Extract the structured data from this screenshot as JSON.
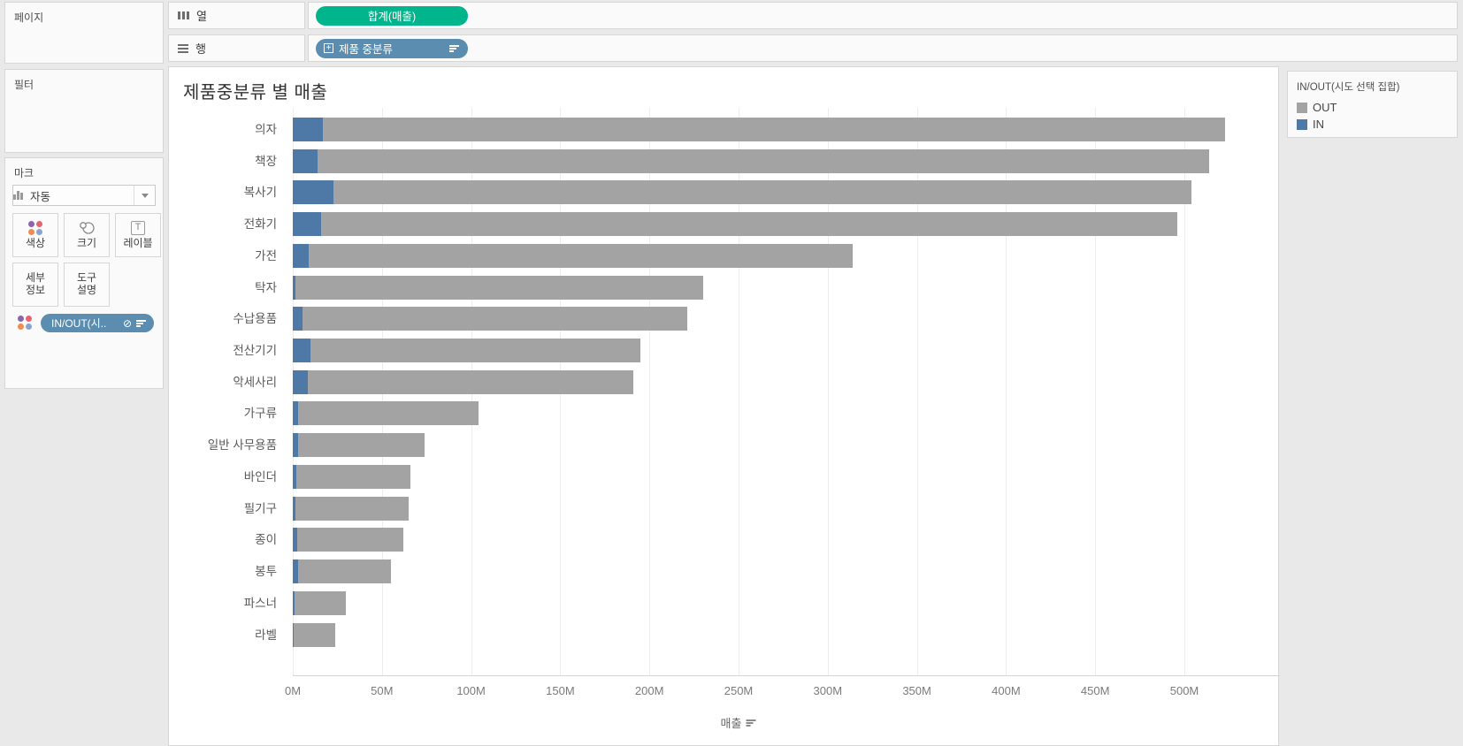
{
  "pages_panel": {
    "title": "페이지"
  },
  "filters_panel": {
    "title": "필터"
  },
  "marks_panel": {
    "title": "마크",
    "mark_type_label": "자동",
    "color_button": "색상",
    "size_button": "크기",
    "label_button": "레이블",
    "detail_button_line1": "세부",
    "detail_button_line2": "정보",
    "tooltip_button_line1": "도구",
    "tooltip_button_line2": "설명",
    "set_pill_label": "IN/OUT(시.."
  },
  "shelves": {
    "columns_label": "열",
    "columns_pill": "합계(매출)",
    "rows_label": "행",
    "rows_pill": "제품 중분류"
  },
  "chart": {
    "title": "제품중분류 별 매출"
  },
  "chart_data": {
    "type": "bar",
    "orientation": "horizontal",
    "stacked": true,
    "title": "제품중분류 별 매출",
    "categories": [
      "의자",
      "책장",
      "복사기",
      "전화기",
      "가전",
      "탁자",
      "수납용품",
      "전산기기",
      "악세사리",
      "가구류",
      "일반 사무용품",
      "바인더",
      "필기구",
      "종이",
      "봉투",
      "파스너",
      "라벨"
    ],
    "series": [
      {
        "name": "IN",
        "color": "#4e79a7",
        "values": [
          17,
          14,
          23,
          16,
          9,
          1.5,
          5.5,
          10,
          8.5,
          3,
          3,
          2,
          1.5,
          2.5,
          3,
          0.8,
          0.5
        ]
      },
      {
        "name": "OUT",
        "color": "#a3a3a3",
        "values": [
          506,
          500,
          481,
          480,
          305,
          228.5,
          215.5,
          185,
          182.5,
          101,
          71,
          64,
          63.5,
          59.5,
          52,
          29.2,
          23.5
        ]
      }
    ],
    "totals_M": [
      523,
      514,
      504,
      496,
      314,
      230,
      221,
      195,
      191,
      104,
      74,
      66,
      65,
      62,
      55,
      30,
      24
    ],
    "xlabel": "매출",
    "x_ticks": [
      "0M",
      "50M",
      "100M",
      "150M",
      "200M",
      "250M",
      "300M",
      "350M",
      "400M",
      "450M",
      "500M"
    ],
    "x_tick_values": [
      0,
      50,
      100,
      150,
      200,
      250,
      300,
      350,
      400,
      450,
      500
    ],
    "xlim": [
      0,
      553
    ],
    "unit": "M",
    "grid": true,
    "legend_position": "right"
  },
  "legend": {
    "title": "IN/OUT(시도 선택 집합)",
    "items": [
      {
        "label": "OUT",
        "color": "#a3a3a3"
      },
      {
        "label": "IN",
        "color": "#4e79a7"
      }
    ]
  },
  "colors": {
    "measure_pill_green": "#00b48c",
    "dimension_pill_blue": "#5b8db0",
    "bar_in_blue": "#4e79a7",
    "bar_out_gray": "#a3a3a3",
    "background": "#e9e9e9"
  }
}
